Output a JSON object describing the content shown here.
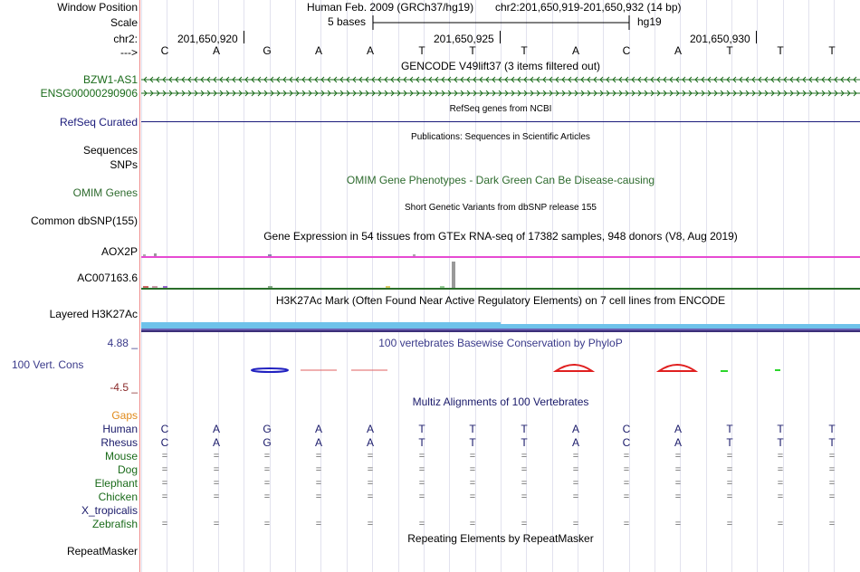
{
  "window_position": {
    "label": "Window Position",
    "genome": "Human Feb. 2009 (GRCh37/hg19)",
    "coords": "chr2:201,650,919-201,650,932 (14 bp)"
  },
  "scale": {
    "label": "Scale",
    "text": "5 bases",
    "assembly": "hg19"
  },
  "ruler": {
    "chrom": "chr2:",
    "ticks": [
      "201,650,920",
      "201,650,925",
      "201,650,930"
    ],
    "arrow": "--->"
  },
  "bases": [
    "C",
    "A",
    "G",
    "A",
    "A",
    "T",
    "T",
    "T",
    "A",
    "C",
    "A",
    "T",
    "T",
    "T"
  ],
  "gencode": {
    "title": "GENCODE V49lift37 (3 items filtered out)",
    "tracks": [
      "BZW1-AS1",
      "ENSG00000290906"
    ]
  },
  "refseq": {
    "title": "RefSeq genes from NCBI",
    "label": "RefSeq Curated"
  },
  "publications": {
    "title": "Publications: Sequences in Scientific Articles",
    "label": "Sequences"
  },
  "snps": {
    "label": "SNPs"
  },
  "omim": {
    "title": "OMIM Gene Phenotypes - Dark Green Can Be Disease-causing",
    "label": "OMIM Genes"
  },
  "dbsnp": {
    "title": "Short Genetic Variants from dbSNP release 155",
    "label": "Common dbSNP(155)"
  },
  "gtex": {
    "title": "Gene Expression in 54 tissues from GTEx RNA-seq of 17382 samples, 948 donors (V8, Aug 2019)",
    "tracks": [
      "AOX2P",
      "AC007163.6"
    ]
  },
  "h3k27ac": {
    "title": "H3K27Ac Mark (Often Found Near Active Regulatory Elements) on 7 cell lines from ENCODE",
    "label": "Layered H3K27Ac"
  },
  "phylop": {
    "title": "100 vertebrates Basewise Conservation by PhyloP",
    "label": "100 Vert. Cons",
    "max": "4.88 _",
    "min": "-4.5 _"
  },
  "multiz": {
    "title": "Multiz Alignments of 100 Vertebrates",
    "gaps_label": "Gaps",
    "species": [
      {
        "name": "Human",
        "seq": [
          "C",
          "A",
          "G",
          "A",
          "A",
          "T",
          "T",
          "T",
          "A",
          "C",
          "A",
          "T",
          "T",
          "T"
        ]
      },
      {
        "name": "Rhesus",
        "seq": [
          "C",
          "A",
          "G",
          "A",
          "A",
          "T",
          "T",
          "T",
          "A",
          "C",
          "A",
          "T",
          "T",
          "T"
        ]
      },
      {
        "name": "Mouse",
        "seq": [
          "=",
          "=",
          "=",
          "=",
          "=",
          "=",
          "=",
          "=",
          "=",
          "=",
          "=",
          "=",
          "=",
          "="
        ]
      },
      {
        "name": "Dog",
        "seq": [
          "=",
          "=",
          "=",
          "=",
          "=",
          "=",
          "=",
          "=",
          "=",
          "=",
          "=",
          "=",
          "=",
          "="
        ]
      },
      {
        "name": "Elephant",
        "seq": [
          "=",
          "=",
          "=",
          "=",
          "=",
          "=",
          "=",
          "=",
          "=",
          "=",
          "=",
          "=",
          "=",
          "="
        ]
      },
      {
        "name": "Chicken",
        "seq": [
          "=",
          "=",
          "=",
          "=",
          "=",
          "=",
          "=",
          "=",
          "=",
          "=",
          "=",
          "=",
          "=",
          "="
        ]
      },
      {
        "name": "X_tropicalis",
        "seq": []
      },
      {
        "name": "Zebrafish",
        "seq": [
          "=",
          "=",
          "=",
          "=",
          "=",
          "=",
          "=",
          "=",
          "=",
          "=",
          "=",
          "=",
          "=",
          "="
        ]
      }
    ]
  },
  "repeatmasker": {
    "title": "Repeating Elements by RepeatMasker",
    "label": "RepeatMasker"
  },
  "colors": {
    "gencode": "#1a6b1a",
    "refseq": "#1a1a7a",
    "omim": "#2e6b2e",
    "phylop_label": "#3a3a8a",
    "phylop_min": "#8a2b2b",
    "gaps": "#e08a1a",
    "gtex_line": "#e64ad2",
    "h3k27ac": "#6ec2ea"
  }
}
